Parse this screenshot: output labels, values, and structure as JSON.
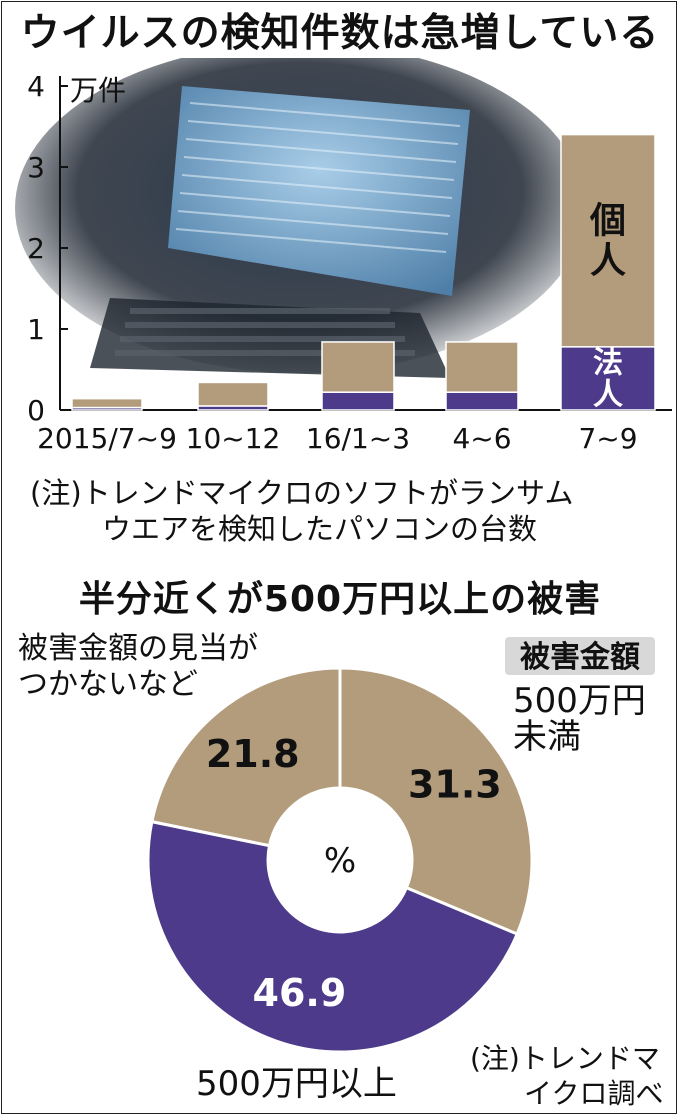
{
  "chart_data": [
    {
      "type": "bar",
      "title": "ウイルスの検知件数は急増している",
      "ylabel": "万件",
      "ylim": [
        0,
        4
      ],
      "yticks": [
        "0",
        "1",
        "2",
        "3",
        "4"
      ],
      "categories": [
        "2015/7~9",
        "10~12",
        "16/1~3",
        "4~6",
        "7~9"
      ],
      "series": [
        {
          "name": "法人",
          "color": "#4d3a8a",
          "values": [
            0.03,
            0.05,
            0.22,
            0.22,
            0.78
          ]
        },
        {
          "name": "個人",
          "color": "#b39c7b",
          "values": [
            0.11,
            0.29,
            0.62,
            0.62,
            2.62
          ]
        }
      ],
      "stacked": true,
      "grid": false,
      "legend": "inline",
      "note": [
        "(注)トレンドマイクロのソフトがランサム",
        "ウエアを検知したパソコンの台数"
      ]
    },
    {
      "type": "pie",
      "title": "半分近くが500万円以上の被害",
      "center_label": "%",
      "header_label": "被害金額",
      "slices": [
        {
          "label": [
            "500万円",
            "未満"
          ],
          "value": 31.3,
          "color": "#b39c7b"
        },
        {
          "label": [
            "500万円以上"
          ],
          "value": 46.9,
          "color": "#4d3a8a"
        },
        {
          "label": [
            "被害金額の見当が",
            "つかないなど"
          ],
          "value": 21.8,
          "color": "#b39c7b"
        }
      ],
      "note": [
        "(注)トレンドマ",
        "イクロ調べ"
      ]
    }
  ]
}
